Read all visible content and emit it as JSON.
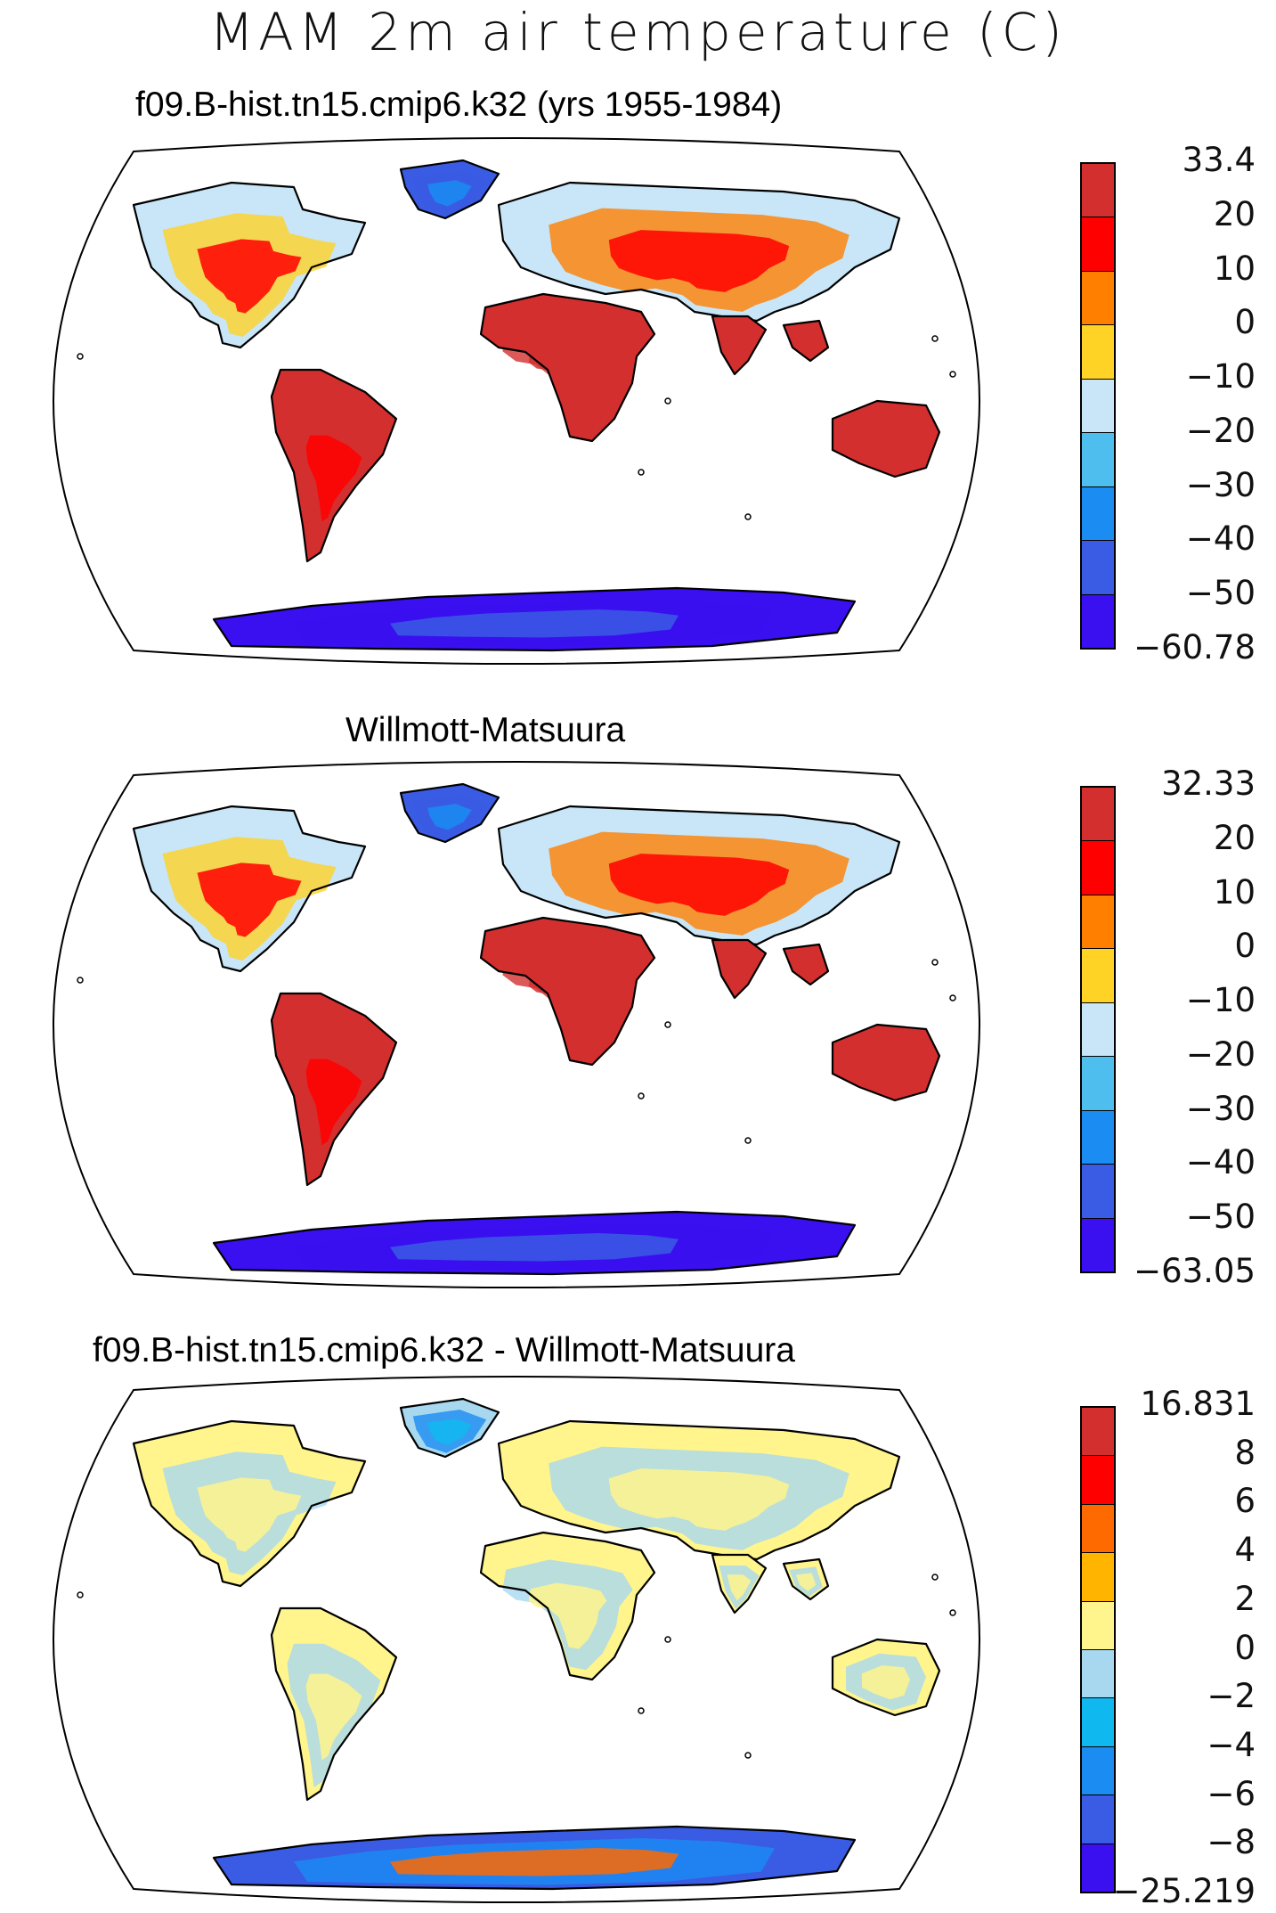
{
  "title": "MAM 2m air temperature (C)",
  "panels": [
    {
      "subtitle": "f09.B-hist.tn15.cmip6.k32 (yrs 1955-1984)",
      "kind": "abs",
      "colorbar": {
        "colors": [
          "#d32f2f",
          "#ff0000",
          "#ff7f00",
          "#ffd226",
          "#c8e6f8",
          "#4ebeef",
          "#1a8cf2",
          "#3a5be3",
          "#3a0ff0"
        ],
        "labels": [
          "33.4",
          "20",
          "10",
          "0",
          "−10",
          "−20",
          "−30",
          "−40",
          "−50",
          "−60.78"
        ]
      }
    },
    {
      "subtitle": "Willmott-Matsuura",
      "kind": "abs",
      "colorbar": {
        "colors": [
          "#d32f2f",
          "#ff0000",
          "#ff7f00",
          "#ffd226",
          "#c8e6f8",
          "#4ebeef",
          "#1a8cf2",
          "#3a5be3",
          "#3a0ff0"
        ],
        "labels": [
          "32.33",
          "20",
          "10",
          "0",
          "−10",
          "−20",
          "−30",
          "−40",
          "−50",
          "−63.05"
        ]
      }
    },
    {
      "subtitle": "f09.B-hist.tn15.cmip6.k32 - Willmott-Matsuura",
      "kind": "diff",
      "colorbar": {
        "colors": [
          "#d32f2f",
          "#ff0000",
          "#ff6a00",
          "#ffb400",
          "#fff58c",
          "#a8d8f0",
          "#10b8f0",
          "#1a8cf2",
          "#3a5be3",
          "#3a0ff0"
        ],
        "labels": [
          "16.831",
          "8",
          "6",
          "4",
          "2",
          "0",
          "−2",
          "−4",
          "−6",
          "−8",
          "−25.219"
        ]
      }
    }
  ]
}
